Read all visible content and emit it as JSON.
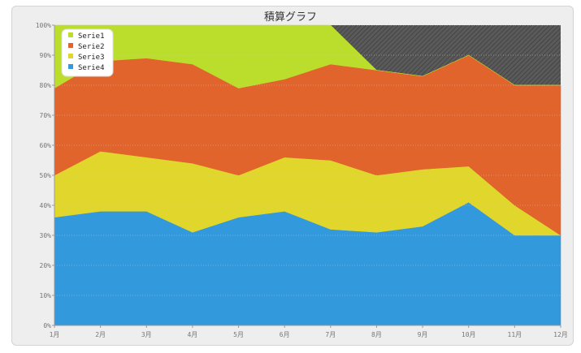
{
  "chart_data": {
    "type": "area",
    "stacked": true,
    "title": "積算グラフ",
    "categories": [
      "1月",
      "2月",
      "3月",
      "4月",
      "5月",
      "6月",
      "7月",
      "8月",
      "9月",
      "10月",
      "11月",
      "12月"
    ],
    "y_ticks": [
      "0%",
      "10%",
      "20%",
      "30%",
      "40%",
      "50%",
      "60%",
      "70%",
      "80%",
      "90%",
      "100%"
    ],
    "ylim": [
      0,
      100
    ],
    "legend_position": "top-left",
    "grid": true,
    "series": [
      {
        "name": "Serie4",
        "color": "#3399dd",
        "values": [
          36,
          38,
          38,
          31,
          36,
          38,
          32,
          31,
          33,
          41,
          30,
          30
        ]
      },
      {
        "name": "Serie3",
        "color": "#e1d62c",
        "values": [
          14,
          20,
          18,
          23,
          14,
          18,
          23,
          19,
          19,
          12,
          10,
          0
        ]
      },
      {
        "name": "Serie2",
        "color": "#e0642c",
        "values": [
          29,
          30,
          33,
          33,
          29,
          26,
          32,
          35,
          31,
          37,
          40,
          50
        ]
      },
      {
        "name": "Serie1",
        "color": "#bbdd2c",
        "values": [
          21,
          12,
          11,
          13,
          21,
          18,
          13,
          0,
          0,
          0,
          0,
          0
        ]
      }
    ],
    "legend_order": [
      "Serie1",
      "Serie2",
      "Serie3",
      "Serie4"
    ],
    "remainder_fill": "#555555"
  }
}
